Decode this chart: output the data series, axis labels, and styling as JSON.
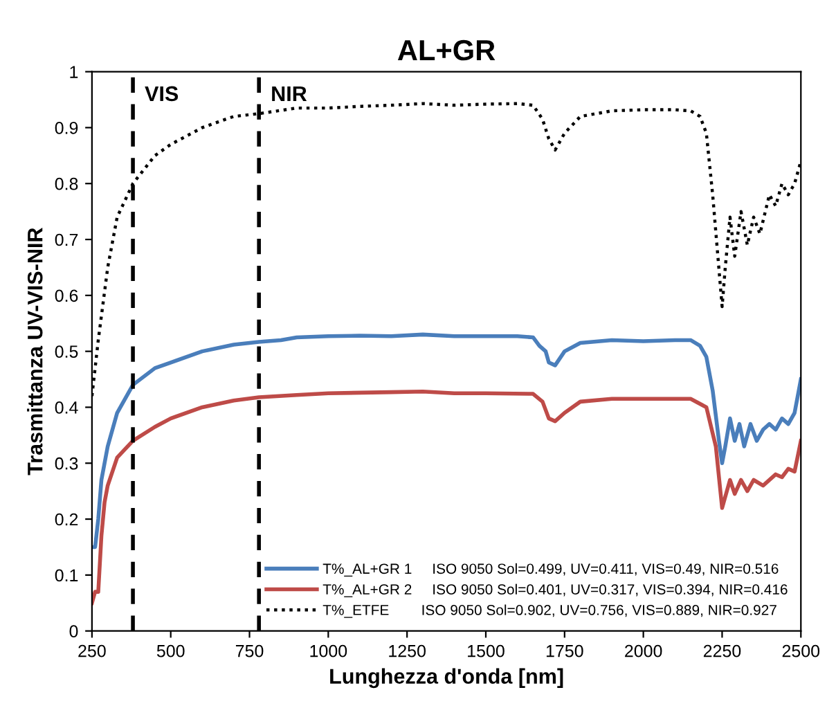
{
  "chart_data": {
    "type": "line",
    "title": "AL+GR",
    "xlabel": "Lunghezza d'onda [nm]",
    "ylabel": "Trasmittanza UV-VIS-NIR",
    "xlim": [
      250,
      2500
    ],
    "xticks": [
      250,
      500,
      750,
      1000,
      1250,
      1500,
      1750,
      2000,
      2250,
      2500
    ],
    "ylim": [
      0,
      1
    ],
    "yticks": [
      0,
      0.1,
      0.2,
      0.3,
      0.4,
      0.5,
      0.6,
      0.7,
      0.8,
      0.9,
      1
    ],
    "grid": false,
    "legend": "bottom right",
    "marker": "none",
    "ref_lines": [
      {
        "axis": "x",
        "value": 380,
        "label": "VIS",
        "color": "#000000",
        "line_style": "dashed"
      },
      {
        "axis": "x",
        "value": 780,
        "label": "NIR",
        "color": "#000000",
        "line_style": "dashed"
      }
    ],
    "series": [
      {
        "name": "T%_AL+GR 1     ISO 9050 Sol=0.499, UV=0.411, VIS=0.49, NIR=0.516",
        "color": "#4a7ebb",
        "line_style": "solid",
        "x": [
          250,
          260,
          270,
          280,
          290,
          300,
          330,
          380,
          450,
          500,
          600,
          700,
          780,
          850,
          900,
          1000,
          1100,
          1200,
          1300,
          1400,
          1500,
          1600,
          1650,
          1670,
          1690,
          1700,
          1720,
          1750,
          1800,
          1900,
          2000,
          2100,
          2150,
          2180,
          2200,
          2220,
          2240,
          2250,
          2260,
          2275,
          2290,
          2305,
          2320,
          2340,
          2360,
          2380,
          2400,
          2420,
          2440,
          2460,
          2480,
          2500
        ],
        "values": [
          0.15,
          0.15,
          0.2,
          0.27,
          0.3,
          0.33,
          0.39,
          0.44,
          0.47,
          0.48,
          0.5,
          0.512,
          0.517,
          0.52,
          0.525,
          0.527,
          0.528,
          0.527,
          0.53,
          0.527,
          0.527,
          0.527,
          0.525,
          0.51,
          0.5,
          0.48,
          0.475,
          0.5,
          0.515,
          0.52,
          0.518,
          0.52,
          0.52,
          0.51,
          0.49,
          0.43,
          0.34,
          0.3,
          0.33,
          0.38,
          0.34,
          0.37,
          0.33,
          0.37,
          0.34,
          0.36,
          0.37,
          0.36,
          0.38,
          0.37,
          0.39,
          0.45
        ]
      },
      {
        "name": "T%_AL+GR 2     ISO 9050 Sol=0.401, UV=0.317, VIS=0.394, NIR=0.416",
        "color": "#be4b48",
        "line_style": "solid",
        "x": [
          250,
          260,
          270,
          280,
          290,
          300,
          330,
          380,
          450,
          500,
          600,
          700,
          780,
          900,
          1000,
          1200,
          1300,
          1400,
          1500,
          1650,
          1680,
          1700,
          1720,
          1750,
          1800,
          1900,
          2000,
          2150,
          2200,
          2230,
          2250,
          2260,
          2275,
          2290,
          2310,
          2330,
          2350,
          2380,
          2420,
          2440,
          2460,
          2480,
          2500
        ],
        "values": [
          0.05,
          0.07,
          0.07,
          0.17,
          0.23,
          0.26,
          0.31,
          0.34,
          0.365,
          0.38,
          0.4,
          0.412,
          0.418,
          0.422,
          0.425,
          0.427,
          0.428,
          0.425,
          0.425,
          0.424,
          0.41,
          0.38,
          0.375,
          0.39,
          0.41,
          0.415,
          0.415,
          0.415,
          0.4,
          0.33,
          0.22,
          0.24,
          0.27,
          0.245,
          0.27,
          0.25,
          0.27,
          0.26,
          0.28,
          0.275,
          0.29,
          0.285,
          0.34
        ]
      },
      {
        "name": "T%_ETFE        ISO 9050 Sol=0.902, UV=0.756, VIS=0.889, NIR=0.927",
        "color": "#000000",
        "line_style": "dotted",
        "x": [
          250,
          270,
          300,
          330,
          380,
          450,
          500,
          600,
          700,
          780,
          900,
          1000,
          1100,
          1200,
          1300,
          1400,
          1500,
          1600,
          1650,
          1680,
          1700,
          1720,
          1750,
          1800,
          1900,
          2000,
          2100,
          2150,
          2180,
          2200,
          2220,
          2235,
          2250,
          2260,
          2275,
          2290,
          2310,
          2330,
          2350,
          2370,
          2400,
          2420,
          2440,
          2460,
          2480,
          2500
        ],
        "values": [
          0.42,
          0.52,
          0.65,
          0.74,
          0.8,
          0.85,
          0.87,
          0.9,
          0.92,
          0.925,
          0.935,
          0.935,
          0.938,
          0.94,
          0.943,
          0.94,
          0.942,
          0.943,
          0.94,
          0.915,
          0.88,
          0.86,
          0.89,
          0.92,
          0.93,
          0.932,
          0.932,
          0.93,
          0.92,
          0.89,
          0.78,
          0.68,
          0.58,
          0.65,
          0.74,
          0.67,
          0.75,
          0.69,
          0.74,
          0.71,
          0.78,
          0.76,
          0.8,
          0.78,
          0.8,
          0.84
        ]
      }
    ]
  }
}
